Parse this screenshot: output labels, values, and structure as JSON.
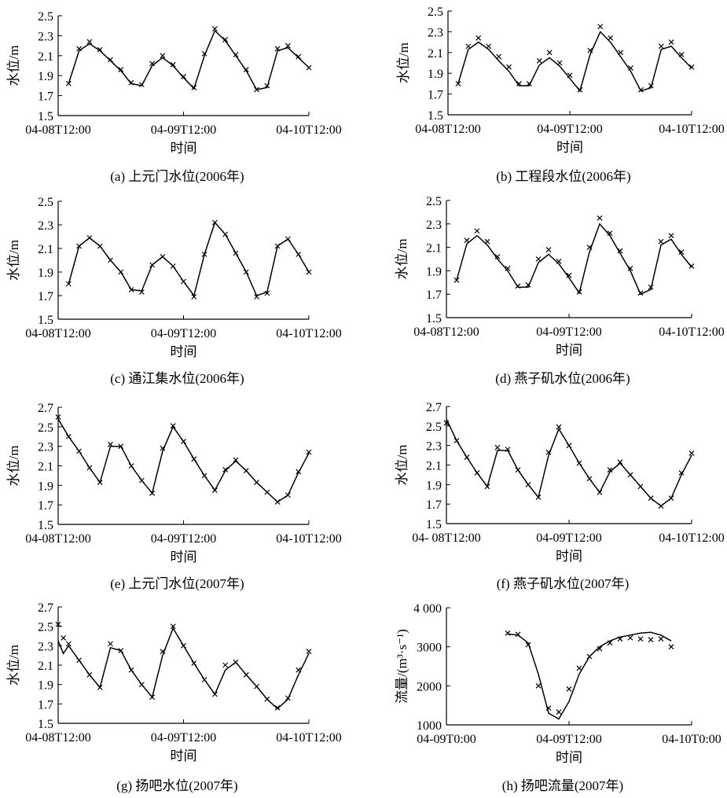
{
  "figure": {
    "panels": [
      {
        "caption": "(a) 上元门水位(2006年)",
        "ylabel": "水位/m",
        "xlabel": "时间",
        "yticks": [
          "1.5",
          "1.7",
          "1.9",
          "2.1",
          "2.3",
          "2.5"
        ],
        "xticks": [
          "04-08T12:00",
          "04-09T12:00",
          "04-10T12:00"
        ]
      },
      {
        "caption": "(b) 工程段水位(2006年)",
        "ylabel": "水位/m",
        "xlabel": "时间",
        "yticks": [
          "1.5",
          "1.7",
          "1.9",
          "2.1",
          "2.3",
          "2.5"
        ],
        "xticks": [
          "04-08T12:00",
          "04-09T12:00",
          "04-10T12:00"
        ]
      },
      {
        "caption": "(c) 通江集水位(2006年)",
        "ylabel": "水位/m",
        "xlabel": "时间",
        "yticks": [
          "1.5",
          "1.7",
          "1.9",
          "2.1",
          "2.3",
          "2.5"
        ],
        "xticks": [
          "04-08T12:00",
          "04-09T12:00",
          "04-10T12:00"
        ]
      },
      {
        "caption": "(d) 燕子矶水位(2006年)",
        "ylabel": "水位/m",
        "xlabel": "时间",
        "yticks": [
          "1.5",
          "1.7",
          "1.9",
          "2.1",
          "2.3",
          "2.5"
        ],
        "xticks": [
          "04-08T12:00",
          "04-09T12:00",
          "04-10T12:00"
        ]
      },
      {
        "caption": "(e) 上元门水位(2007年)",
        "ylabel": "水位/m",
        "xlabel": "时间",
        "yticks": [
          "1.5",
          "1.7",
          "1.9",
          "2.1",
          "2.3",
          "2.5",
          "2.7"
        ],
        "xticks": [
          "04-08T12:00",
          "04-09T12:00",
          "04-10T12:00"
        ]
      },
      {
        "caption": "(f) 燕子矶水位(2007年)",
        "ylabel": "水位/m",
        "xlabel": "时间",
        "yticks": [
          "1.5",
          "1.7",
          "1.9",
          "2.1",
          "2.3",
          "2.5",
          "2.7"
        ],
        "xticks": [
          "04- 08T12:00",
          "04-09T12:00",
          "04-10T12:00"
        ]
      },
      {
        "caption": "(g) 扬吧水位(2007年)",
        "ylabel": "水位/m",
        "xlabel": "时间",
        "yticks": [
          "1.5",
          "1.7",
          "1.9",
          "2.1",
          "2.3",
          "2.5",
          "2.7"
        ],
        "xticks": [
          "04-08T12:00",
          "04-09T12:00",
          "04-10T12:00"
        ]
      },
      {
        "caption": "(h) 扬吧流量(2007年)",
        "ylabel": "流量/(m³·s⁻¹)",
        "xlabel": "时间",
        "yticks": [
          "1000",
          "2000",
          "3000",
          "4 000"
        ],
        "xticks": [
          "04-09T0:00",
          "04-09T12:00",
          "04-10T0:00"
        ]
      }
    ]
  },
  "chart_data": [
    {
      "type": "line",
      "title": "(a) 上元门水位(2006年)",
      "xlabel": "时间",
      "ylabel": "水位/m",
      "x_unit": "hours since 04-08T12:00",
      "xlim": [
        0,
        48
      ],
      "ylim": [
        1.5,
        2.5
      ],
      "series": [
        {
          "style": "line",
          "x": [
            2,
            4,
            6,
            8,
            10,
            12,
            14,
            16,
            18,
            20,
            22,
            24,
            26,
            28,
            30,
            32,
            34,
            36,
            38,
            40,
            42,
            44,
            46,
            48
          ],
          "values": [
            1.82,
            2.15,
            2.22,
            2.15,
            2.05,
            1.95,
            1.82,
            1.8,
            2.0,
            2.08,
            2.0,
            1.88,
            1.77,
            2.1,
            2.35,
            2.25,
            2.1,
            1.95,
            1.76,
            1.78,
            2.15,
            2.18,
            2.08,
            1.98
          ]
        },
        {
          "style": "markers",
          "x": [
            2,
            4,
            6,
            8,
            10,
            12,
            14,
            16,
            18,
            20,
            22,
            24,
            26,
            28,
            30,
            32,
            34,
            36,
            38,
            40,
            42,
            44,
            46,
            48
          ],
          "values": [
            1.82,
            2.17,
            2.24,
            2.16,
            2.06,
            1.96,
            1.83,
            1.81,
            2.02,
            2.1,
            2.01,
            1.89,
            1.78,
            2.12,
            2.37,
            2.26,
            2.11,
            1.96,
            1.76,
            1.8,
            2.17,
            2.2,
            2.09,
            1.98
          ]
        }
      ]
    },
    {
      "type": "line",
      "title": "(b) 工程段水位(2006年)",
      "xlabel": "时间",
      "ylabel": "水位/m",
      "x_unit": "hours since 04-08T12:00",
      "xlim": [
        0,
        48
      ],
      "ylim": [
        1.5,
        2.5
      ],
      "series": [
        {
          "style": "line",
          "x": [
            2,
            4,
            6,
            8,
            10,
            12,
            14,
            16,
            18,
            20,
            22,
            24,
            26,
            28,
            30,
            32,
            34,
            36,
            38,
            40,
            42,
            44,
            46,
            48
          ],
          "values": [
            1.8,
            2.13,
            2.2,
            2.13,
            2.02,
            1.92,
            1.78,
            1.78,
            1.98,
            2.05,
            1.97,
            1.85,
            1.73,
            2.08,
            2.3,
            2.2,
            2.06,
            1.92,
            1.73,
            1.76,
            2.13,
            2.16,
            2.05,
            1.95
          ]
        },
        {
          "style": "markers",
          "x": [
            2,
            4,
            6,
            8,
            10,
            12,
            14,
            16,
            18,
            20,
            22,
            24,
            26,
            28,
            30,
            32,
            34,
            36,
            38,
            40,
            42,
            44,
            46,
            48
          ],
          "values": [
            1.8,
            2.16,
            2.24,
            2.16,
            2.06,
            1.96,
            1.8,
            1.8,
            2.02,
            2.1,
            2.0,
            1.88,
            1.74,
            2.12,
            2.35,
            2.24,
            2.1,
            1.95,
            1.74,
            1.78,
            2.16,
            2.2,
            2.08,
            1.96
          ]
        }
      ]
    },
    {
      "type": "line",
      "title": "(c) 通江集水位(2006年)",
      "xlabel": "时间",
      "ylabel": "水位/m",
      "x_unit": "hours since 04-08T12:00",
      "xlim": [
        0,
        48
      ],
      "ylim": [
        1.5,
        2.5
      ],
      "series": [
        {
          "style": "line",
          "x": [
            2,
            4,
            6,
            8,
            10,
            12,
            14,
            16,
            18,
            20,
            22,
            24,
            26,
            28,
            30,
            32,
            34,
            36,
            38,
            40,
            42,
            44,
            46,
            48
          ],
          "values": [
            1.8,
            2.12,
            2.19,
            2.12,
            2.0,
            1.9,
            1.75,
            1.74,
            1.96,
            2.03,
            1.95,
            1.82,
            1.7,
            2.05,
            2.32,
            2.22,
            2.06,
            1.9,
            1.7,
            1.73,
            2.12,
            2.18,
            2.05,
            1.9
          ]
        },
        {
          "style": "markers",
          "x": [
            2,
            4,
            6,
            8,
            10,
            12,
            14,
            16,
            18,
            20,
            22,
            24,
            26,
            28,
            30,
            32,
            34,
            36,
            38,
            40,
            42,
            44,
            46,
            48
          ],
          "values": [
            1.8,
            2.12,
            2.19,
            2.12,
            2.0,
            1.9,
            1.75,
            1.73,
            1.96,
            2.03,
            1.95,
            1.82,
            1.69,
            2.05,
            2.32,
            2.22,
            2.06,
            1.9,
            1.69,
            1.72,
            2.12,
            2.18,
            2.05,
            1.9
          ]
        }
      ]
    },
    {
      "type": "line",
      "title": "(d) 燕子矶水位(2006年)",
      "xlabel": "时间",
      "ylabel": "水位/m",
      "x_unit": "hours since 04-08T12:00",
      "xlim": [
        0,
        48
      ],
      "ylim": [
        1.5,
        2.5
      ],
      "series": [
        {
          "style": "line",
          "x": [
            2,
            4,
            6,
            8,
            10,
            12,
            14,
            16,
            18,
            20,
            22,
            24,
            26,
            28,
            30,
            32,
            34,
            36,
            38,
            40,
            42,
            44,
            46,
            48
          ],
          "values": [
            1.82,
            2.13,
            2.2,
            2.12,
            2.0,
            1.9,
            1.76,
            1.76,
            1.97,
            2.04,
            1.96,
            1.84,
            1.71,
            2.06,
            2.3,
            2.2,
            2.05,
            1.9,
            1.7,
            1.74,
            2.12,
            2.17,
            2.04,
            1.93
          ]
        },
        {
          "style": "markers",
          "x": [
            2,
            4,
            6,
            8,
            10,
            12,
            14,
            16,
            18,
            20,
            22,
            24,
            26,
            28,
            30,
            32,
            34,
            36,
            38,
            40,
            42,
            44,
            46,
            48
          ],
          "values": [
            1.82,
            2.16,
            2.24,
            2.15,
            2.02,
            1.92,
            1.77,
            1.78,
            2.0,
            2.08,
            1.98,
            1.86,
            1.72,
            2.1,
            2.35,
            2.22,
            2.07,
            1.92,
            1.71,
            1.76,
            2.15,
            2.2,
            2.06,
            1.94
          ]
        }
      ]
    },
    {
      "type": "line",
      "title": "(e) 上元门水位(2007年)",
      "xlabel": "时间",
      "ylabel": "水位/m",
      "x_unit": "hours since 04-08T12:00",
      "xlim": [
        0,
        48
      ],
      "ylim": [
        1.5,
        2.7
      ],
      "series": [
        {
          "style": "line",
          "x": [
            0,
            2,
            4,
            6,
            8,
            10,
            12,
            14,
            16,
            18,
            20,
            22,
            24,
            26,
            28,
            30,
            32,
            34,
            36,
            38,
            40,
            42,
            44,
            46,
            48
          ],
          "values": [
            2.58,
            2.4,
            2.25,
            2.08,
            1.93,
            2.3,
            2.3,
            2.1,
            1.95,
            1.82,
            2.25,
            2.5,
            2.35,
            2.17,
            2.0,
            1.85,
            2.05,
            2.15,
            2.05,
            1.93,
            1.83,
            1.73,
            1.8,
            2.03,
            2.23
          ]
        },
        {
          "style": "markers",
          "x": [
            0,
            2,
            4,
            6,
            8,
            10,
            12,
            14,
            16,
            18,
            20,
            22,
            24,
            26,
            28,
            30,
            32,
            34,
            36,
            38,
            40,
            42,
            44,
            46,
            48
          ],
          "values": [
            2.6,
            2.4,
            2.25,
            2.08,
            1.93,
            2.32,
            2.3,
            2.1,
            1.95,
            1.82,
            2.28,
            2.51,
            2.35,
            2.17,
            2.0,
            1.85,
            2.06,
            2.16,
            2.05,
            1.93,
            1.83,
            1.73,
            1.8,
            2.04,
            2.24
          ]
        }
      ]
    },
    {
      "type": "line",
      "title": "(f) 燕子矶水位(2007年)",
      "xlabel": "时间",
      "ylabel": "水位/m",
      "x_unit": "hours since 04-08T12:00",
      "xlim": [
        0,
        48
      ],
      "ylim": [
        1.5,
        2.7
      ],
      "series": [
        {
          "style": "line",
          "x": [
            0,
            2,
            4,
            6,
            8,
            10,
            12,
            14,
            16,
            18,
            20,
            22,
            24,
            26,
            28,
            30,
            32,
            34,
            36,
            38,
            40,
            42,
            44,
            46,
            48
          ],
          "values": [
            2.57,
            2.35,
            2.18,
            2.02,
            1.88,
            2.25,
            2.25,
            2.05,
            1.9,
            1.77,
            2.2,
            2.47,
            2.3,
            2.12,
            1.96,
            1.82,
            2.03,
            2.12,
            2.0,
            1.88,
            1.76,
            1.68,
            1.76,
            2.0,
            2.2
          ]
        },
        {
          "style": "markers",
          "x": [
            0,
            2,
            4,
            6,
            8,
            10,
            12,
            14,
            16,
            18,
            20,
            22,
            24,
            26,
            28,
            30,
            32,
            34,
            36,
            38,
            40,
            42,
            44,
            46,
            48
          ],
          "values": [
            2.53,
            2.35,
            2.18,
            2.02,
            1.88,
            2.28,
            2.26,
            2.05,
            1.9,
            1.77,
            2.23,
            2.49,
            2.3,
            2.12,
            1.96,
            1.82,
            2.05,
            2.13,
            2.0,
            1.88,
            1.76,
            1.68,
            1.76,
            2.02,
            2.22
          ]
        }
      ]
    },
    {
      "type": "line",
      "title": "(g) 扬吧水位(2007年)",
      "xlabel": "时间",
      "ylabel": "水位/m",
      "x_unit": "hours since 04-08T12:00",
      "xlim": [
        0,
        48
      ],
      "ylim": [
        1.5,
        2.7
      ],
      "series": [
        {
          "style": "line",
          "x": [
            0,
            1,
            2,
            4,
            6,
            8,
            10,
            12,
            14,
            16,
            18,
            20,
            22,
            24,
            26,
            28,
            30,
            32,
            34,
            36,
            38,
            40,
            42,
            44,
            46,
            48
          ],
          "values": [
            2.35,
            2.22,
            2.3,
            2.15,
            2.0,
            1.87,
            2.28,
            2.25,
            2.05,
            1.9,
            1.77,
            2.2,
            2.48,
            2.3,
            2.12,
            1.95,
            1.8,
            2.05,
            2.13,
            2.0,
            1.88,
            1.75,
            1.65,
            1.75,
            2.0,
            2.22
          ]
        },
        {
          "style": "markers",
          "x": [
            0,
            1,
            2,
            4,
            6,
            8,
            10,
            12,
            14,
            16,
            18,
            20,
            22,
            24,
            26,
            28,
            30,
            32,
            34,
            36,
            38,
            40,
            42,
            44,
            46,
            48
          ],
          "values": [
            2.52,
            2.38,
            2.32,
            2.15,
            2.0,
            1.87,
            2.32,
            2.25,
            2.05,
            1.9,
            1.77,
            2.24,
            2.5,
            2.3,
            2.12,
            1.95,
            1.8,
            2.1,
            2.13,
            2.0,
            1.88,
            1.75,
            1.66,
            1.76,
            2.05,
            2.24
          ]
        }
      ]
    },
    {
      "type": "line",
      "title": "(h) 扬吧流量(2007年)",
      "xlabel": "时间",
      "ylabel": "流量/(m³·s⁻¹)",
      "x_unit": "hours since 04-09T0:00",
      "xlim": [
        0,
        24
      ],
      "ylim": [
        1000,
        4000
      ],
      "series": [
        {
          "style": "line",
          "x": [
            6,
            7,
            8,
            9,
            10,
            11,
            12,
            13,
            14,
            15,
            16,
            17,
            18,
            19,
            20,
            21,
            22
          ],
          "values": [
            3330,
            3300,
            3100,
            2300,
            1300,
            1150,
            1600,
            2300,
            2750,
            3000,
            3150,
            3250,
            3300,
            3350,
            3370,
            3300,
            3150
          ]
        },
        {
          "style": "markers",
          "x": [
            6,
            7,
            8,
            9,
            10,
            11,
            12,
            13,
            14,
            15,
            16,
            17,
            18,
            19,
            20,
            21,
            22
          ],
          "values": [
            3350,
            3320,
            3050,
            2000,
            1430,
            1330,
            1920,
            2450,
            2750,
            2950,
            3100,
            3200,
            3230,
            3200,
            3180,
            3200,
            3000
          ]
        }
      ]
    }
  ]
}
